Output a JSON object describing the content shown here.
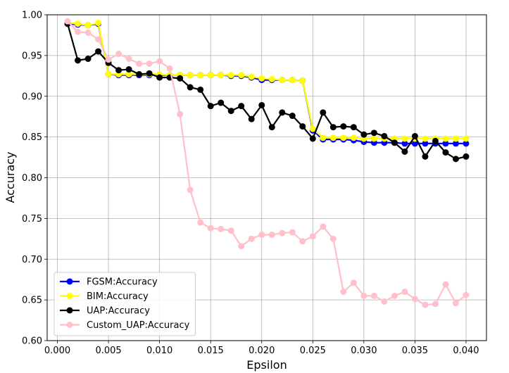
{
  "chart_data": {
    "type": "line",
    "title": "",
    "xlabel": "Epsilon",
    "ylabel": "Accuracy",
    "xlim": [
      -0.001,
      0.042
    ],
    "ylim": [
      0.6,
      1.0
    ],
    "xticks": [
      "0.000",
      "0.005",
      "0.010",
      "0.015",
      "0.020",
      "0.025",
      "0.030",
      "0.035",
      "0.040"
    ],
    "yticks": [
      "0.60",
      "0.65",
      "0.70",
      "0.75",
      "0.80",
      "0.85",
      "0.90",
      "0.95",
      "1.00"
    ],
    "grid": true,
    "legend_position": "lower-left",
    "x": [
      0.001,
      0.002,
      0.003,
      0.004,
      0.005,
      0.006,
      0.007,
      0.008,
      0.009,
      0.01,
      0.011,
      0.012,
      0.013,
      0.014,
      0.015,
      0.016,
      0.017,
      0.018,
      0.019,
      0.02,
      0.021,
      0.022,
      0.023,
      0.024,
      0.025,
      0.026,
      0.027,
      0.028,
      0.029,
      0.03,
      0.031,
      0.032,
      0.033,
      0.034,
      0.035,
      0.036,
      0.037,
      0.038,
      0.039,
      0.04
    ],
    "series": [
      {
        "name": "FGSM:Accuracy",
        "color": "#0000ff",
        "values": [
          0.989,
          0.988,
          0.987,
          0.989,
          0.927,
          0.926,
          0.926,
          0.926,
          0.926,
          0.926,
          0.926,
          0.926,
          0.926,
          0.926,
          0.926,
          0.926,
          0.925,
          0.925,
          0.923,
          0.92,
          0.92,
          0.92,
          0.92,
          0.919,
          0.858,
          0.847,
          0.847,
          0.847,
          0.846,
          0.844,
          0.843,
          0.843,
          0.843,
          0.842,
          0.842,
          0.842,
          0.842,
          0.842,
          0.842,
          0.842
        ]
      },
      {
        "name": "BIM:Accuracy",
        "color": "#ffff00",
        "values": [
          0.99,
          0.989,
          0.987,
          0.99,
          0.927,
          0.927,
          0.927,
          0.927,
          0.927,
          0.927,
          0.926,
          0.926,
          0.926,
          0.926,
          0.926,
          0.926,
          0.926,
          0.926,
          0.924,
          0.922,
          0.921,
          0.92,
          0.92,
          0.919,
          0.86,
          0.849,
          0.849,
          0.849,
          0.849,
          0.848,
          0.848,
          0.848,
          0.848,
          0.848,
          0.848,
          0.848,
          0.848,
          0.848,
          0.848,
          0.848
        ]
      },
      {
        "name": "UAP:Accuracy",
        "color": "#000000",
        "values": [
          0.989,
          0.944,
          0.946,
          0.955,
          0.941,
          0.932,
          0.933,
          0.927,
          0.928,
          0.923,
          0.923,
          0.922,
          0.911,
          0.908,
          0.888,
          0.892,
          0.882,
          0.888,
          0.872,
          0.889,
          0.862,
          0.88,
          0.876,
          0.863,
          0.848,
          0.88,
          0.862,
          0.863,
          0.862,
          0.853,
          0.855,
          0.851,
          0.843,
          0.832,
          0.851,
          0.826,
          0.845,
          0.831,
          0.823,
          0.826
        ]
      },
      {
        "name": "Custom_UAP:Accuracy",
        "color": "#ffc0cb",
        "values": [
          0.992,
          0.979,
          0.978,
          0.97,
          0.945,
          0.952,
          0.946,
          0.94,
          0.94,
          0.943,
          0.934,
          0.878,
          0.785,
          0.745,
          0.738,
          0.737,
          0.735,
          0.716,
          0.725,
          0.73,
          0.73,
          0.732,
          0.733,
          0.722,
          0.728,
          0.74,
          0.725,
          0.66,
          0.671,
          0.655,
          0.655,
          0.648,
          0.655,
          0.66,
          0.651,
          0.644,
          0.645,
          0.669,
          0.646,
          0.656
        ]
      }
    ]
  }
}
